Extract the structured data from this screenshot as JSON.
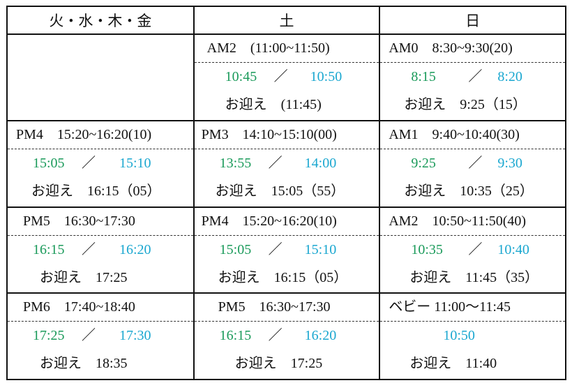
{
  "headers": [
    "火・水・木・金",
    "土",
    "日"
  ],
  "colors": {
    "arrive": "#1a9a5a",
    "depart": "#1aa7d0"
  },
  "slash": "／",
  "rows": [
    [
      null,
      {
        "session": "AM2　(11:00~11:50)",
        "arrive": "10:45",
        "depart": "10:50",
        "pickup": "お迎え　(11:45)"
      },
      {
        "session": "AM0　8:30~9:30(20)",
        "arrive": "8:15",
        "depart": "8:20",
        "pickup": "お迎え　9:25（15）"
      }
    ],
    [
      {
        "session": "PM4　15:20~16:20(10)",
        "arrive": "15:05",
        "depart": "15:10",
        "pickup": "お迎え　16:15（05）"
      },
      {
        "session": "PM3　14:10~15:10(00)",
        "arrive": "13:55",
        "depart": "14:00",
        "pickup": "お迎え　15:05（55）"
      },
      {
        "session": "AM1　9:40~10:40(30)",
        "arrive": "9:25",
        "depart": "9:30",
        "pickup": "お迎え　10:35（25）"
      }
    ],
    [
      {
        "session": "PM5　16:30~17:30",
        "arrive": "16:15",
        "depart": "16:20",
        "pickup": "お迎え　17:25"
      },
      {
        "session": "PM4　15:20~16:20(10)",
        "arrive": "15:05",
        "depart": "15:10",
        "pickup": "お迎え　16:15（05）"
      },
      {
        "session": "AM2　10:50~11:50(40)",
        "arrive": "10:35",
        "depart": "10:40",
        "pickup": "お迎え　11:45（35）"
      }
    ],
    [
      {
        "session": "PM6　17:40~18:40",
        "arrive": "17:25",
        "depart": "17:30",
        "pickup": "お迎え　18:35"
      },
      {
        "session": "PM5　16:30~17:30",
        "arrive": "16:15",
        "depart": "16:20",
        "pickup": "お迎え　17:25"
      },
      {
        "session": "ベビー 11:00～11:45",
        "arrive": null,
        "depart": "10:50",
        "pickup": "お迎え　11:40"
      }
    ]
  ]
}
